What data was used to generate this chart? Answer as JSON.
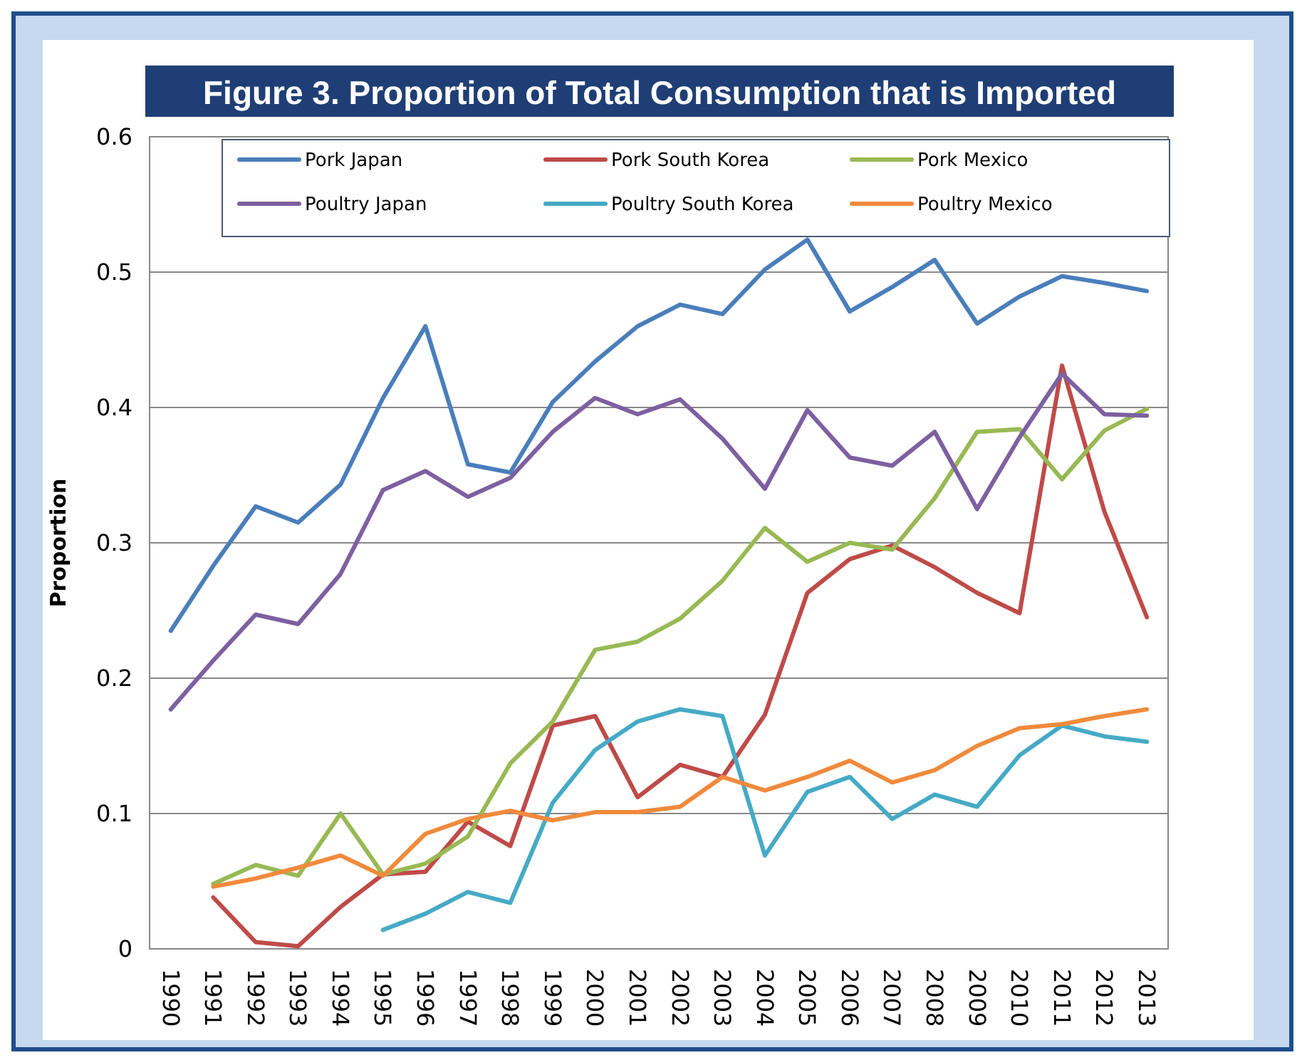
{
  "chart_data": {
    "type": "line",
    "title": "Figure 3. Proportion of Total Consumption that is Imported",
    "ylabel": "Proportion",
    "categories": [
      "1990",
      "1991",
      "1992",
      "1993",
      "1994",
      "1995",
      "1996",
      "1997",
      "1998",
      "1999",
      "2000",
      "2001",
      "2002",
      "2003",
      "2004",
      "2005",
      "2006",
      "2007",
      "2008",
      "2009",
      "2010",
      "2011",
      "2012",
      "2013"
    ],
    "ylim": [
      0,
      0.6
    ],
    "yticks": [
      0,
      0.1,
      0.2,
      0.3,
      0.4,
      0.5,
      0.6
    ],
    "grid": "y",
    "legend": "top",
    "marker": "none",
    "line_style": "solid",
    "series": [
      {
        "name": "Pork Japan",
        "color": "#4a7ebb",
        "values": [
          0.235,
          0.283,
          0.327,
          0.315,
          0.343,
          0.407,
          0.46,
          0.358,
          0.352,
          0.404,
          0.434,
          0.46,
          0.476,
          0.469,
          0.502,
          0.524,
          0.471,
          0.489,
          0.509,
          0.462,
          0.482,
          0.497,
          0.492,
          0.486
        ]
      },
      {
        "name": "Pork South Korea",
        "color": "#be4b48",
        "values": [
          null,
          0.038,
          0.005,
          0.002,
          0.031,
          0.055,
          0.057,
          0.094,
          0.076,
          0.165,
          0.172,
          0.112,
          0.136,
          0.127,
          0.173,
          0.263,
          0.288,
          0.298,
          0.282,
          0.263,
          0.248,
          0.431,
          0.323,
          0.245
        ]
      },
      {
        "name": "Pork Mexico",
        "color": "#98b954",
        "values": [
          null,
          0.048,
          0.062,
          0.054,
          0.1,
          0.055,
          0.063,
          0.083,
          0.137,
          0.168,
          0.221,
          0.227,
          0.244,
          0.272,
          0.311,
          0.286,
          0.3,
          0.295,
          0.333,
          0.382,
          0.384,
          0.347,
          0.383,
          0.399
        ]
      },
      {
        "name": "Poultry Japan",
        "color": "#7d60a0",
        "values": [
          0.177,
          0.213,
          0.247,
          0.24,
          0.277,
          0.339,
          0.353,
          0.334,
          0.348,
          0.382,
          0.407,
          0.395,
          0.406,
          0.377,
          0.34,
          0.398,
          0.363,
          0.357,
          0.382,
          0.325,
          0.378,
          0.425,
          0.395,
          0.394
        ]
      },
      {
        "name": "Poultry South Korea",
        "color": "#46aac5",
        "values": [
          null,
          null,
          null,
          null,
          null,
          0.014,
          0.026,
          0.042,
          0.034,
          0.108,
          0.147,
          0.168,
          0.177,
          0.172,
          0.069,
          0.116,
          0.127,
          0.096,
          0.114,
          0.105,
          0.143,
          0.165,
          0.157,
          0.153
        ]
      },
      {
        "name": "Poultry Mexico",
        "color": "#f08a3c",
        "values": [
          null,
          0.046,
          0.052,
          0.06,
          0.069,
          0.054,
          0.085,
          0.096,
          0.102,
          0.095,
          0.101,
          0.101,
          0.105,
          0.127,
          0.117,
          0.127,
          0.139,
          0.123,
          0.132,
          0.15,
          0.163,
          0.166,
          0.172,
          0.177
        ]
      }
    ]
  }
}
